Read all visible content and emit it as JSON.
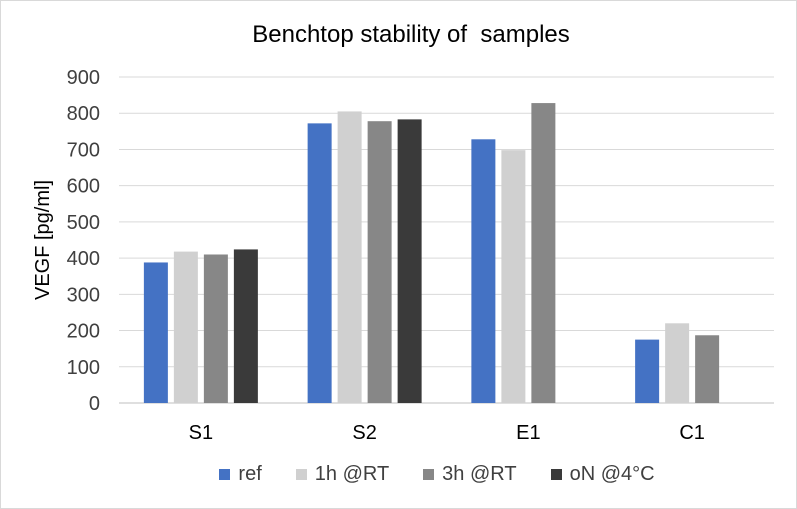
{
  "chart_data": {
    "type": "bar",
    "title": "Benchtop stability of  samples",
    "xlabel": "",
    "ylabel": "VEGF [pg/ml]",
    "ylim": [
      0,
      900
    ],
    "yticks": [
      "0",
      "100",
      "200",
      "300",
      "400",
      "500",
      "600",
      "700",
      "800",
      "900"
    ],
    "grid": true,
    "legend_position": "bottom",
    "categories": [
      "S1",
      "S2",
      "E1",
      "C1"
    ],
    "series": [
      {
        "name": "ref",
        "color": "#4472c4",
        "values": [
          388,
          772,
          728,
          175
        ]
      },
      {
        "name": "1h @RT",
        "color": "#d0d0d0",
        "values": [
          418,
          805,
          698,
          220
        ]
      },
      {
        "name": "3h @RT",
        "color": "#878787",
        "values": [
          410,
          778,
          828,
          187
        ]
      },
      {
        "name": "oN @4°C",
        "color": "#3a3a3a",
        "values": [
          424,
          783,
          null,
          null
        ]
      }
    ]
  }
}
